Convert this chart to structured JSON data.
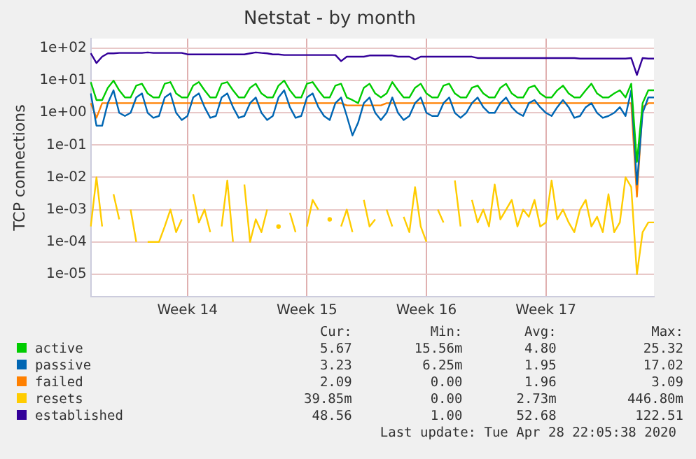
{
  "chart_data": {
    "type": "line",
    "title": "Netstat - by month",
    "ylabel": "TCP connections",
    "log": "y",
    "grid": true,
    "legend": "bottom",
    "marker": "none",
    "line_style": "solid",
    "categories": [
      null,
      null,
      null,
      null,
      null,
      null,
      null,
      null,
      null,
      null,
      null,
      null,
      null,
      null,
      null,
      null,
      null,
      "Week 14",
      null,
      null,
      null,
      null,
      null,
      null,
      null,
      null,
      null,
      null,
      null,
      null,
      null,
      null,
      null,
      null,
      null,
      null,
      null,
      null,
      "Week 15",
      null,
      null,
      null,
      null,
      null,
      null,
      null,
      null,
      null,
      null,
      null,
      null,
      null,
      null,
      null,
      null,
      null,
      null,
      null,
      null,
      "Week 16",
      null,
      null,
      null,
      null,
      null,
      null,
      null,
      null,
      null,
      null,
      null,
      null,
      null,
      null,
      null,
      null,
      null,
      null,
      null,
      null,
      "Week 17",
      null,
      null,
      null,
      null,
      null,
      null,
      null,
      null,
      null,
      null,
      null,
      null,
      null,
      null,
      null,
      null,
      null,
      null,
      null
    ],
    "ylim": [
      2e-06,
      200
    ],
    "yticks": [
      {
        "value": 100,
        "label": "1e+02"
      },
      {
        "value": 10,
        "label": "1e+01"
      },
      {
        "value": 1,
        "label": "1e+00"
      },
      {
        "value": 0.1,
        "label": "1e-01"
      },
      {
        "value": 0.01,
        "label": "1e-02"
      },
      {
        "value": 0.001,
        "label": "1e-03"
      },
      {
        "value": 0.0001,
        "label": "1e-04"
      },
      {
        "value": 1e-05,
        "label": "1e-05"
      }
    ],
    "series": [
      {
        "name": "active",
        "color": "#00cc00",
        "values": [
          9,
          2.5,
          2.5,
          6,
          10,
          5,
          3,
          3,
          7,
          8,
          4,
          3,
          3,
          8,
          9,
          4,
          3,
          3,
          7,
          9,
          5,
          3,
          3,
          8,
          9,
          5,
          3,
          3,
          6,
          8,
          4,
          3,
          3,
          7,
          10,
          5,
          3,
          3,
          8,
          9,
          5,
          3,
          3,
          7,
          8,
          3,
          2.5,
          2,
          6,
          8,
          4,
          3,
          4,
          9,
          5,
          3,
          3,
          6,
          8,
          4,
          3,
          3,
          7,
          8,
          4,
          3,
          3,
          6,
          7,
          4,
          3,
          3,
          6,
          8,
          4,
          3,
          3,
          6,
          7,
          4,
          3,
          3,
          5,
          7,
          4,
          3,
          3,
          5,
          8,
          4,
          3,
          3,
          4,
          5,
          3,
          8,
          0.03,
          2,
          5,
          5
        ]
      },
      {
        "name": "passive",
        "color": "#0066b3",
        "values": [
          4,
          0.4,
          0.4,
          2,
          5,
          1,
          0.8,
          1,
          3,
          4,
          1,
          0.7,
          0.8,
          3,
          4,
          1,
          0.6,
          0.8,
          3,
          4,
          1.5,
          0.7,
          0.8,
          3,
          4,
          1.5,
          0.7,
          0.8,
          2,
          3,
          1,
          0.6,
          0.8,
          3,
          5,
          1.5,
          0.7,
          0.8,
          3,
          4,
          1.5,
          0.8,
          0.6,
          2,
          3,
          0.8,
          0.2,
          0.5,
          2,
          3,
          1,
          0.6,
          1,
          3,
          1,
          0.6,
          0.8,
          2,
          3,
          1,
          0.8,
          0.8,
          2,
          3,
          1,
          0.7,
          1,
          2,
          3,
          1.5,
          1,
          1,
          2,
          3,
          1.5,
          1,
          0.8,
          2,
          2.5,
          1.5,
          1,
          0.8,
          1.5,
          2.5,
          1.5,
          0.7,
          0.8,
          1.5,
          2,
          1,
          0.7,
          0.8,
          1,
          1.5,
          0.8,
          5,
          0.006,
          1,
          3,
          3
        ]
      },
      {
        "name": "failed",
        "color": "#ff8000",
        "values": [
          2,
          0.7,
          2,
          2,
          2,
          2,
          2,
          2,
          2,
          2,
          2,
          2,
          2,
          2,
          2,
          2,
          2,
          2,
          2,
          2,
          2,
          2,
          2,
          2,
          2,
          2,
          2,
          2,
          2,
          2,
          2,
          2,
          2,
          2,
          2,
          2,
          2,
          2,
          2,
          2,
          2,
          2,
          2,
          2,
          2,
          1.7,
          1.7,
          1.7,
          1.7,
          1.7,
          1.7,
          1.7,
          2,
          2,
          2,
          2,
          2,
          2,
          2,
          2,
          2,
          2,
          2,
          2,
          2,
          2,
          2,
          2,
          2,
          2,
          2,
          2,
          2,
          2,
          2,
          2,
          2,
          2,
          2,
          2,
          2,
          2,
          2,
          2,
          2,
          2,
          2,
          2,
          2,
          2,
          2,
          2,
          2,
          2,
          2,
          2,
          0.0025,
          1.5,
          2,
          2
        ]
      },
      {
        "name": "resets",
        "color": "#ffcc00",
        "values": [
          0.0003,
          0.01,
          0.0003,
          null,
          0.003,
          0.0005,
          null,
          0.001,
          0.0001,
          null,
          0.0001,
          0.0001,
          0.0001,
          0.0003,
          0.001,
          0.0002,
          0.0005,
          null,
          0.003,
          0.0004,
          0.001,
          0.0002,
          null,
          0.0003,
          0.008,
          0.0001,
          null,
          0.006,
          0.0001,
          0.0005,
          0.0002,
          0.001,
          null,
          0.0003,
          null,
          0.0008,
          0.0002,
          null,
          0.0003,
          0.002,
          0.001,
          null,
          0.0005,
          null,
          0.0003,
          0.001,
          0.0002,
          null,
          0.002,
          0.0003,
          0.0005,
          null,
          0.001,
          0.0003,
          null,
          0.0006,
          0.0002,
          0.005,
          0.0003,
          0.0001,
          null,
          0.001,
          0.0004,
          null,
          0.008,
          0.0003,
          null,
          0.002,
          0.0004,
          0.001,
          0.0003,
          0.006,
          0.0005,
          0.001,
          0.002,
          0.0003,
          0.001,
          0.0006,
          0.002,
          0.0003,
          0.0004,
          0.008,
          0.0005,
          0.001,
          0.0004,
          0.0002,
          0.001,
          0.002,
          0.0003,
          0.0006,
          0.0002,
          0.003,
          0.0002,
          0.0004,
          0.01,
          0.005,
          1e-05,
          0.0002,
          0.0004,
          0.0004
        ]
      },
      {
        "name": "established",
        "color": "#330099",
        "values": [
          70,
          35,
          55,
          70,
          70,
          72,
          72,
          72,
          72,
          72,
          75,
          72,
          72,
          72,
          72,
          72,
          72,
          65,
          65,
          65,
          65,
          65,
          65,
          65,
          65,
          65,
          65,
          65,
          70,
          75,
          72,
          70,
          65,
          65,
          62,
          62,
          62,
          62,
          62,
          62,
          62,
          62,
          62,
          62,
          40,
          55,
          55,
          55,
          55,
          60,
          60,
          60,
          60,
          60,
          55,
          55,
          55,
          45,
          55,
          55,
          55,
          55,
          55,
          55,
          55,
          55,
          55,
          55,
          50,
          50,
          50,
          50,
          50,
          50,
          50,
          50,
          50,
          50,
          50,
          50,
          50,
          50,
          50,
          50,
          50,
          50,
          48,
          48,
          48,
          48,
          48,
          48,
          48,
          48,
          48,
          50,
          15,
          50,
          48,
          48
        ]
      }
    ],
    "annotations": [
      "Cur:",
      "Min:",
      "Avg:",
      "Max:",
      "5.67",
      "15.56m",
      "4.80",
      "25.32",
      "3.23",
      "6.25m",
      "1.95",
      "17.02",
      "2.09",
      "0.00",
      "1.96",
      "3.09",
      "39.85m",
      "0.00",
      "2.73m",
      "446.80m",
      "48.56",
      "1.00",
      "52.68",
      "122.51",
      "Last update: Tue Apr 28 22:05:38 2020"
    ]
  }
}
